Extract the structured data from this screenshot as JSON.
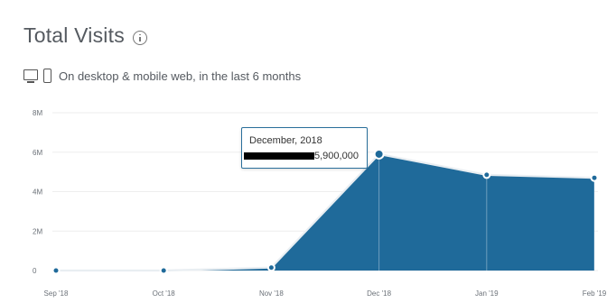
{
  "header": {
    "title": "Total Visits",
    "subtitle": "On desktop & mobile web, in the last 6 months"
  },
  "tooltip": {
    "title": "December, 2018",
    "value": "5,900,000"
  },
  "colors": {
    "area": "#1f6a9a",
    "line": "#e9eef2",
    "grid": "#eeeeee",
    "axis_text": "#6b7178",
    "tooltip_border": "#2a6f9b"
  },
  "chart_data": {
    "type": "area",
    "x": [
      "Sep '18",
      "Oct '18",
      "Nov '18",
      "Dec '18",
      "Jan '19",
      "Feb '19"
    ],
    "series": [
      {
        "values": [
          0,
          0,
          150000,
          5900000,
          4850000,
          4700000
        ]
      }
    ],
    "ylim": [
      0,
      8000000
    ],
    "yticks": [
      0,
      2000000,
      4000000,
      6000000,
      8000000
    ],
    "ytick_labels": [
      "0",
      "2M",
      "4M",
      "6M",
      "8M"
    ],
    "xlabel": "",
    "ylabel": "",
    "grid": true,
    "highlighted_point": "Dec '18"
  }
}
